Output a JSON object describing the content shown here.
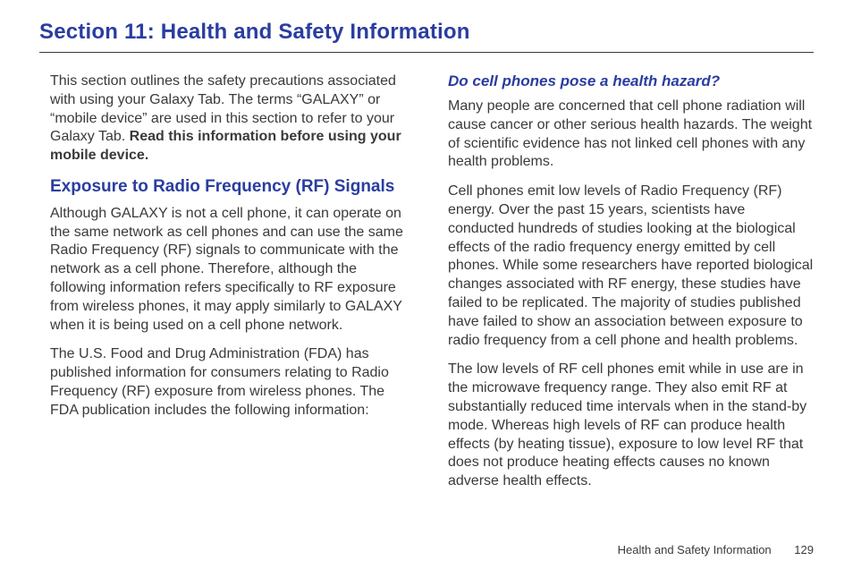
{
  "colors": {
    "heading_blue": "#2a3da0",
    "body_text": "#3a3a3a",
    "background": "#ffffff",
    "divider": "#3a3a3a"
  },
  "typography": {
    "section_title_pt": 24,
    "h2_pt": 19,
    "h3_pt": 17,
    "body_pt": 16,
    "footer_pt": 13,
    "body_line_height": 1.3
  },
  "section_title": "Section 11: Health and Safety Information",
  "left": {
    "intro_text": "This section outlines the safety precautions associated with using your Galaxy Tab. The terms “GALAXY” or “mobile device” are used in this section to refer to your Galaxy Tab. ",
    "intro_bold": "Read this information before using your mobile device.",
    "h2": "Exposure to Radio Frequency (RF) Signals",
    "p1": "Although GALAXY is not a cell phone, it can operate on the same network as cell phones and can use the same Radio Frequency (RF) signals to communicate with the network as a cell phone. Therefore, although the following information refers specifically to RF exposure from wireless phones, it may apply similarly to GALAXY when it is being used on a cell phone network.",
    "p2": "The U.S. Food and Drug Administration (FDA) has published information for consumers relating to Radio Frequency (RF) exposure from wireless phones. The FDA publication includes the following information:"
  },
  "right": {
    "h3": "Do cell phones pose a health hazard?",
    "p1": "Many people are concerned that cell phone radiation will cause cancer or other serious health hazards. The weight of scientific evidence has not linked cell phones with any health problems.",
    "p2": "Cell phones emit low levels of Radio Frequency (RF) energy. Over the past 15 years, scientists have conducted hundreds of studies looking at the biological effects of the radio frequency energy emitted by cell phones. While some researchers have reported biological changes associated with RF energy, these studies have failed to be replicated. The majority of studies published have failed to show an association between exposure to radio frequency from a cell phone and health problems.",
    "p3": "The low levels of RF cell phones emit while in use are in the microwave frequency range. They also emit RF at substantially reduced time intervals when in the stand-by mode. Whereas high levels of RF can produce health effects (by heating tissue), exposure to low level RF that does not produce heating effects causes no known adverse health effects."
  },
  "footer": {
    "label": "Health and Safety Information",
    "page_number": "129"
  }
}
